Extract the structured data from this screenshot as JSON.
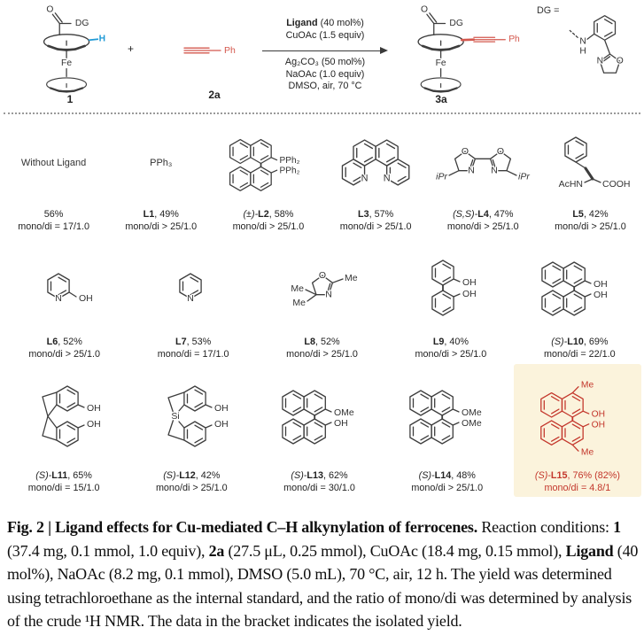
{
  "scheme": {
    "compound1_label": "1",
    "compound2_label": "2a",
    "compound3_label": "3a",
    "plus": "+",
    "cond_ligand_bold": "Ligand",
    "cond_ligand_rest": " (40 mol%)",
    "cond_cuoac": "CuOAc (1.5 equiv)",
    "cond_ag2co3": "Ag₂CO₃ (50 mol%)",
    "cond_naoac": "NaOAc (1.0 equiv)",
    "cond_solvent": "DMSO, air, 70 °C",
    "dg_equals": "DG =",
    "atoms": {
      "O": "O",
      "DG": "DG",
      "H": "H",
      "Fe": "Fe",
      "Ph": "Ph",
      "N": "N"
    }
  },
  "structures": {
    "binap": {
      "labels": [
        "PPh₂",
        "PPh₂"
      ]
    },
    "phen": {
      "labels": [
        "N",
        "N"
      ]
    },
    "bisox": {
      "labels": [
        "O",
        "N",
        "O",
        "N",
        "iPr",
        "iPr"
      ]
    },
    "phe": {
      "labels": [
        "AcHN",
        "COOH"
      ]
    },
    "pyoh": {
      "labels": [
        "N",
        "OH"
      ]
    },
    "py": {
      "labels": [
        "N"
      ]
    },
    "oxa": {
      "labels": [
        "O",
        "N",
        "Me",
        "Me",
        "Me"
      ]
    },
    "biphenol": {
      "labels": [
        "OH",
        "OH"
      ]
    },
    "binol": {
      "labels": [
        "OH",
        "OH"
      ]
    },
    "spinol": {
      "labels": [
        "OH",
        "OH"
      ]
    },
    "sispinol": {
      "labels": [
        "Si",
        "OH",
        "OH"
      ]
    },
    "binol_ome_oh": {
      "labels": [
        "OMe",
        "OH"
      ]
    },
    "binol_ome2": {
      "labels": [
        "OMe",
        "OMe"
      ]
    },
    "binol_me2": {
      "labels": [
        "Me",
        "OH",
        "OH",
        "Me"
      ]
    }
  },
  "grid": {
    "rows": [
      {
        "cells": [
          {
            "structure": "none",
            "struct_text": "Without Ligand",
            "prefix": "",
            "id": "",
            "yield": "56%",
            "ratio": "mono/di = 17/1.0",
            "highlight": false
          },
          {
            "structure": "text",
            "struct_text": "PPh₃",
            "prefix": "",
            "id": "L1",
            "yield": ", 49%",
            "ratio": "mono/di > 25/1.0",
            "highlight": false
          },
          {
            "structure": "binap",
            "struct_text": "",
            "prefix": "(±)-",
            "id": "L2",
            "yield": ", 58%",
            "ratio": "mono/di > 25/1.0",
            "highlight": false
          },
          {
            "structure": "phen",
            "struct_text": "",
            "prefix": "",
            "id": "L3",
            "yield": ", 57%",
            "ratio": "mono/di > 25/1.0",
            "highlight": false
          },
          {
            "structure": "bisox",
            "struct_text": "",
            "prefix": "(S,S)-",
            "id": "L4",
            "yield": ", 47%",
            "ratio": "mono/di > 25/1.0",
            "highlight": false
          },
          {
            "structure": "phe",
            "struct_text": "",
            "prefix": "",
            "id": "L5",
            "yield": ", 42%",
            "ratio": "mono/di > 25/1.0",
            "highlight": false
          }
        ]
      },
      {
        "cells": [
          {
            "structure": "pyoh",
            "struct_text": "",
            "prefix": "",
            "id": "L6",
            "yield": ", 52%",
            "ratio": "mono/di > 25/1.0",
            "highlight": false
          },
          {
            "structure": "py",
            "struct_text": "",
            "prefix": "",
            "id": "L7",
            "yield": ", 53%",
            "ratio": "mono/di = 17/1.0",
            "highlight": false
          },
          {
            "structure": "oxa",
            "struct_text": "",
            "prefix": "",
            "id": "L8",
            "yield": ", 52%",
            "ratio": "mono/di > 25/1.0",
            "highlight": false
          },
          {
            "structure": "biphenol",
            "struct_text": "",
            "prefix": "",
            "id": "L9",
            "yield": ", 40%",
            "ratio": "mono/di > 25/1.0",
            "highlight": false
          },
          {
            "structure": "binol",
            "struct_text": "",
            "prefix": "(S)-",
            "id": "L10",
            "yield": ", 69%",
            "ratio": "mono/di = 22/1.0",
            "highlight": false
          }
        ]
      },
      {
        "cells": [
          {
            "structure": "spinol",
            "struct_text": "",
            "prefix": "(S)-",
            "id": "L11",
            "yield": ", 65%",
            "ratio": "mono/di = 15/1.0",
            "highlight": false
          },
          {
            "structure": "sispinol",
            "struct_text": "",
            "prefix": "(S)-",
            "id": "L12",
            "yield": ", 42%",
            "ratio": "mono/di > 25/1.0",
            "highlight": false
          },
          {
            "structure": "binol_ome_oh",
            "struct_text": "",
            "prefix": "(S)-",
            "id": "L13",
            "yield": ", 62%",
            "ratio": "mono/di = 30/1.0",
            "highlight": false
          },
          {
            "structure": "binol_ome2",
            "struct_text": "",
            "prefix": "(S)-",
            "id": "L14",
            "yield": ", 48%",
            "ratio": "mono/di > 25/1.0",
            "highlight": false
          },
          {
            "structure": "binol_me2",
            "struct_text": "",
            "prefix": "(S)-",
            "id": "L15",
            "yield": ", 76% (82%)",
            "ratio": "mono/di = 4.8/1",
            "highlight": true
          }
        ]
      }
    ]
  },
  "caption": {
    "seg0": "Fig. 2 | Ligand effects for Cu-mediated C–H alkynylation of ferrocenes.",
    "seg1": " Reaction conditions: ",
    "seg2": "1",
    "seg3": " (37.4 mg, 0.1 mmol, 1.0 equiv), ",
    "seg4": "2a",
    "seg5": " (27.5 μL, 0.25 mmol), CuOAc (18.4 mg, 0.15 mmol), ",
    "seg6": "Ligand",
    "seg7": " (40 mol%), NaOAc (8.2 mg, 0.1 mmol), DMSO (5.0 mL), 70 °C, air, 12 h. The yield was determined using tetrachloroethane as the internal standard, and the ratio of mono/di was determined by analysis of the crude ",
    "seg8": "¹H NMR. The data in the bracket indicates the isolated yield."
  },
  "colors": {
    "bond": "#3d3d3d",
    "blue_h": "#1f9ad6",
    "scheme_red": "#d4584e",
    "highlight_red": "#c3362b",
    "highlight_bg": "#fbf3dc"
  }
}
